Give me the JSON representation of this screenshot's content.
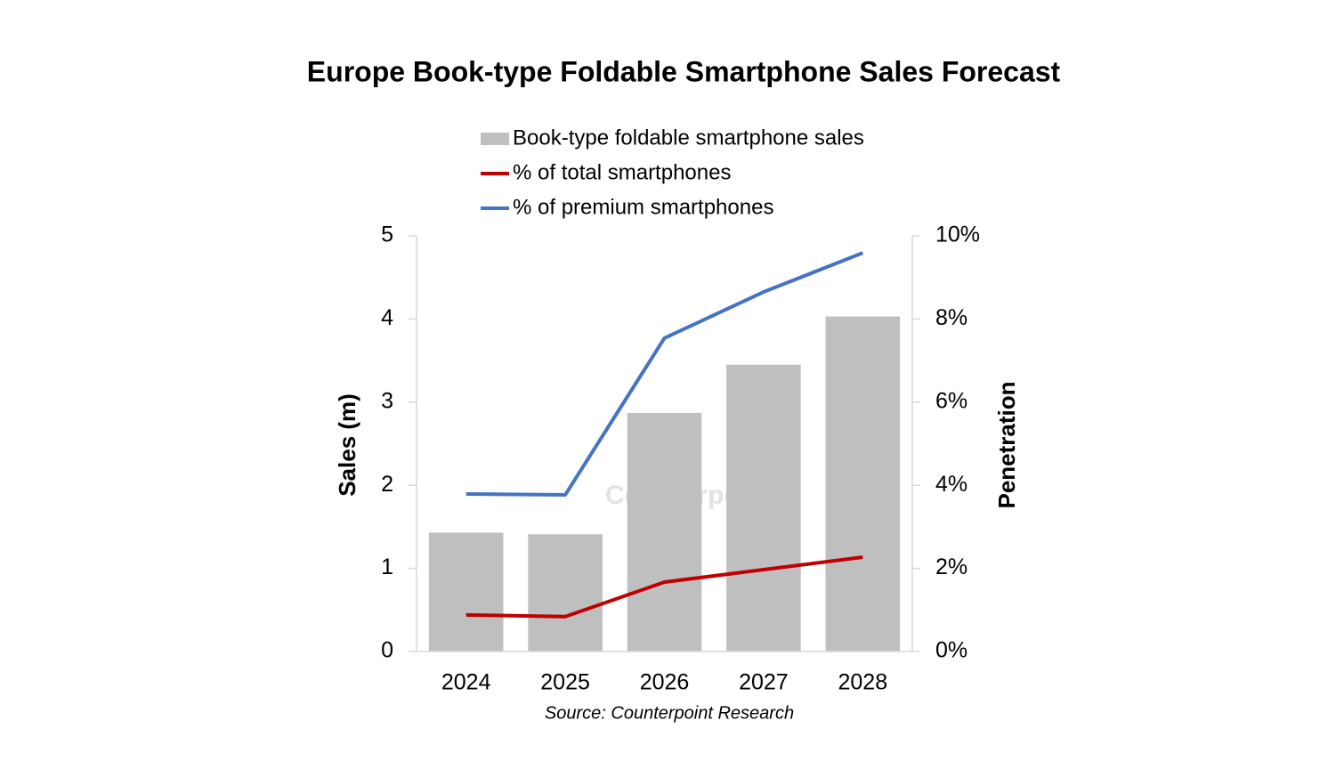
{
  "chart_data": {
    "type": "bar_line",
    "title": "Europe Book-type Foldable Smartphone Sales Forecast",
    "categories": [
      "2024",
      "2025",
      "2026",
      "2027",
      "2028"
    ],
    "series": [
      {
        "name": "Book-type foldable smartphone sales",
        "type": "bar",
        "color": "#bfbfbf",
        "values": [
          1.43,
          1.41,
          2.87,
          3.45,
          4.03
        ]
      },
      {
        "name": "% of total smartphones",
        "type": "line",
        "axis": "y2",
        "color": "#c00000",
        "values": [
          0.88,
          0.84,
          1.67,
          1.97,
          2.27
        ]
      },
      {
        "name": "% of premium smartphones",
        "type": "line",
        "axis": "y2",
        "color": "#4472c4",
        "values": [
          3.79,
          3.77,
          7.54,
          8.65,
          9.59
        ]
      }
    ],
    "ylabel": "Sales (m)",
    "y2label": "Penetration",
    "ylim": [
      0,
      5
    ],
    "yticks": [
      0,
      1,
      2,
      3,
      4,
      5
    ],
    "y2lim": [
      0,
      10
    ],
    "y2ticks": [
      {
        "value": 0,
        "label": "0%"
      },
      {
        "value": 2,
        "label": "2%"
      },
      {
        "value": 4,
        "label": "4%"
      },
      {
        "value": 6,
        "label": "6%"
      },
      {
        "value": 8,
        "label": "8%"
      },
      {
        "value": 10,
        "label": "10%"
      }
    ],
    "watermark": "Counterpoint",
    "source": "Source: Counterpoint Research",
    "grid": false,
    "legend": "top"
  }
}
